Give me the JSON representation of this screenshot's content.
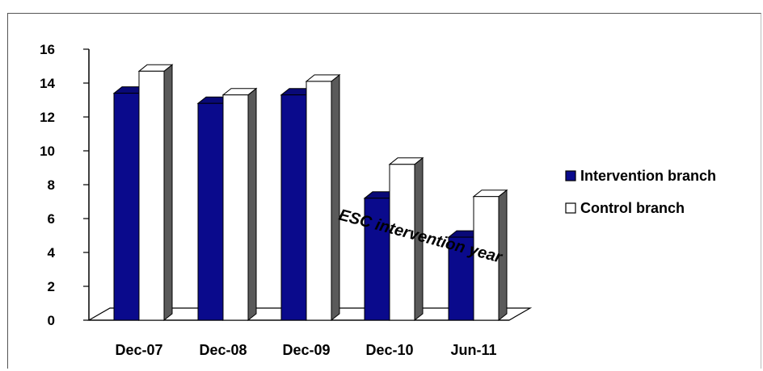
{
  "chart_data": {
    "type": "bar",
    "categories": [
      "Dec-07",
      "Dec-08",
      "Dec-09",
      "Dec-10",
      "Jun-11"
    ],
    "series": [
      {
        "name": "Intervention branch",
        "values": [
          13.4,
          12.8,
          13.3,
          7.2,
          4.9
        ],
        "color": "#0a0a8c"
      },
      {
        "name": "Control branch",
        "values": [
          14.7,
          13.3,
          14.1,
          9.2,
          7.3
        ],
        "color": "#ffffff"
      }
    ],
    "ylim": [
      0,
      16
    ],
    "yticks": [
      0,
      2,
      4,
      6,
      8,
      10,
      12,
      14,
      16
    ],
    "title": "",
    "xlabel": "",
    "ylabel": "",
    "legend_position": "right",
    "annotation": "ESC intervention year",
    "grid": false,
    "style": "3d-bars"
  }
}
